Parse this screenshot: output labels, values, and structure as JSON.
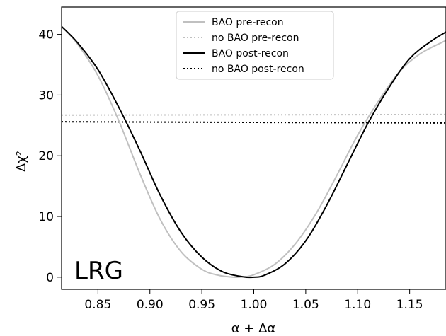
{
  "chart_data": {
    "type": "line",
    "xlabel": "α + Δα",
    "ylabel": "Δχ²",
    "xlim": [
      0.815,
      1.185
    ],
    "ylim": [
      -2,
      44.5
    ],
    "xticks": [
      "0.85",
      "0.90",
      "0.95",
      "1.00",
      "1.05",
      "1.10",
      "1.15"
    ],
    "yticks": [
      "0",
      "10",
      "20",
      "30",
      "40"
    ],
    "annotation": "LRG",
    "legend_position": "top-center",
    "grid": false,
    "series": [
      {
        "name": "BAO pre-recon",
        "color": "#c0c0c0",
        "style": "solid",
        "x": [
          0.815,
          0.83,
          0.85,
          0.87,
          0.89,
          0.91,
          0.93,
          0.95,
          0.965,
          0.98,
          0.99,
          1.0,
          1.02,
          1.04,
          1.06,
          1.08,
          1.1,
          1.12,
          1.14,
          1.16,
          1.185
        ],
        "y": [
          41.3,
          38.5,
          33.2,
          25.8,
          17.2,
          9.5,
          4.2,
          1.3,
          0.35,
          0.0,
          0.05,
          0.4,
          2.1,
          5.5,
          10.5,
          16.8,
          23.4,
          29.0,
          33.8,
          36.8,
          39.0
        ]
      },
      {
        "name": "no BAO pre-recon",
        "color": "#c0c0c0",
        "style": "dotted",
        "x": [
          0.815,
          1.185
        ],
        "y": [
          26.7,
          26.8
        ]
      },
      {
        "name": "BAO post-recon",
        "color": "#000000",
        "style": "solid",
        "x": [
          0.815,
          0.83,
          0.85,
          0.87,
          0.89,
          0.91,
          0.93,
          0.95,
          0.97,
          0.99,
          1.0,
          1.01,
          1.03,
          1.05,
          1.07,
          1.09,
          1.11,
          1.13,
          1.15,
          1.17,
          1.185
        ],
        "y": [
          41.3,
          38.7,
          34.2,
          28.0,
          21.0,
          13.5,
          7.4,
          3.3,
          0.9,
          0.05,
          0.0,
          0.3,
          2.2,
          6.0,
          11.8,
          18.6,
          25.4,
          31.2,
          36.0,
          38.8,
          40.4
        ]
      },
      {
        "name": "no BAO post-recon",
        "color": "#000000",
        "style": "dotted",
        "x": [
          0.815,
          1.185
        ],
        "y": [
          25.6,
          25.4
        ]
      }
    ]
  }
}
